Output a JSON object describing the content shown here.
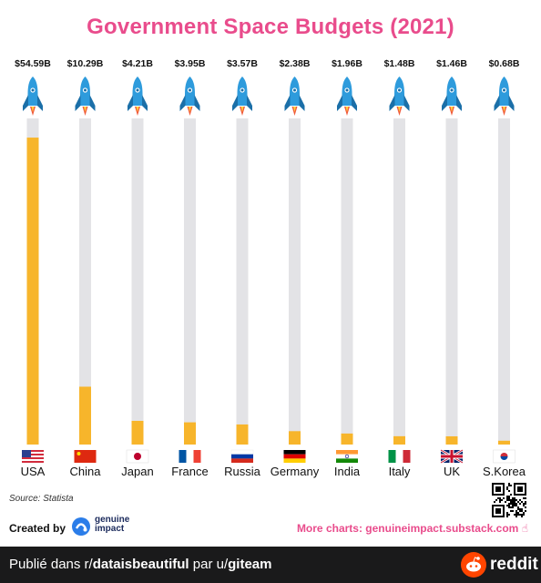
{
  "chart_data": {
    "type": "bar",
    "title": "Government Space Budgets (2021)",
    "categories": [
      "USA",
      "China",
      "Japan",
      "France",
      "Russia",
      "Germany",
      "India",
      "Italy",
      "UK",
      "S.Korea"
    ],
    "values": [
      54.59,
      10.29,
      4.21,
      3.95,
      3.57,
      2.38,
      1.96,
      1.48,
      1.46,
      0.68
    ],
    "value_labels": [
      "$54.59B",
      "$10.29B",
      "$4.21B",
      "$3.95B",
      "$3.57B",
      "$2.38B",
      "$1.96B",
      "$1.48B",
      "$1.46B",
      "$0.68B"
    ],
    "ylim": [
      0,
      58
    ],
    "bar_color": "#f7b52b",
    "track_color": "#e3e3e6",
    "legend": "none",
    "grid": false
  },
  "colors": {
    "title": "#e94c8c",
    "rocket_body": "#2e9bdc",
    "rocket_dark": "#1b6fa8",
    "flame": "#f05a3c"
  },
  "source": "Source: Statista",
  "created_by": "Created by",
  "brand": {
    "line1": "genuine",
    "line2": "impact"
  },
  "more_charts": "More charts: genuineimpact.substack.com",
  "footer": {
    "prefix": "Publié dans r/",
    "subreddit": "dataisbeautiful",
    "middle": " par u/",
    "user": "giteam",
    "logo": "reddit"
  },
  "icons": [
    "rocket-icon",
    "flag-icon",
    "qr-code",
    "reddit-snoo-icon",
    "genuine-impact-logo"
  ]
}
